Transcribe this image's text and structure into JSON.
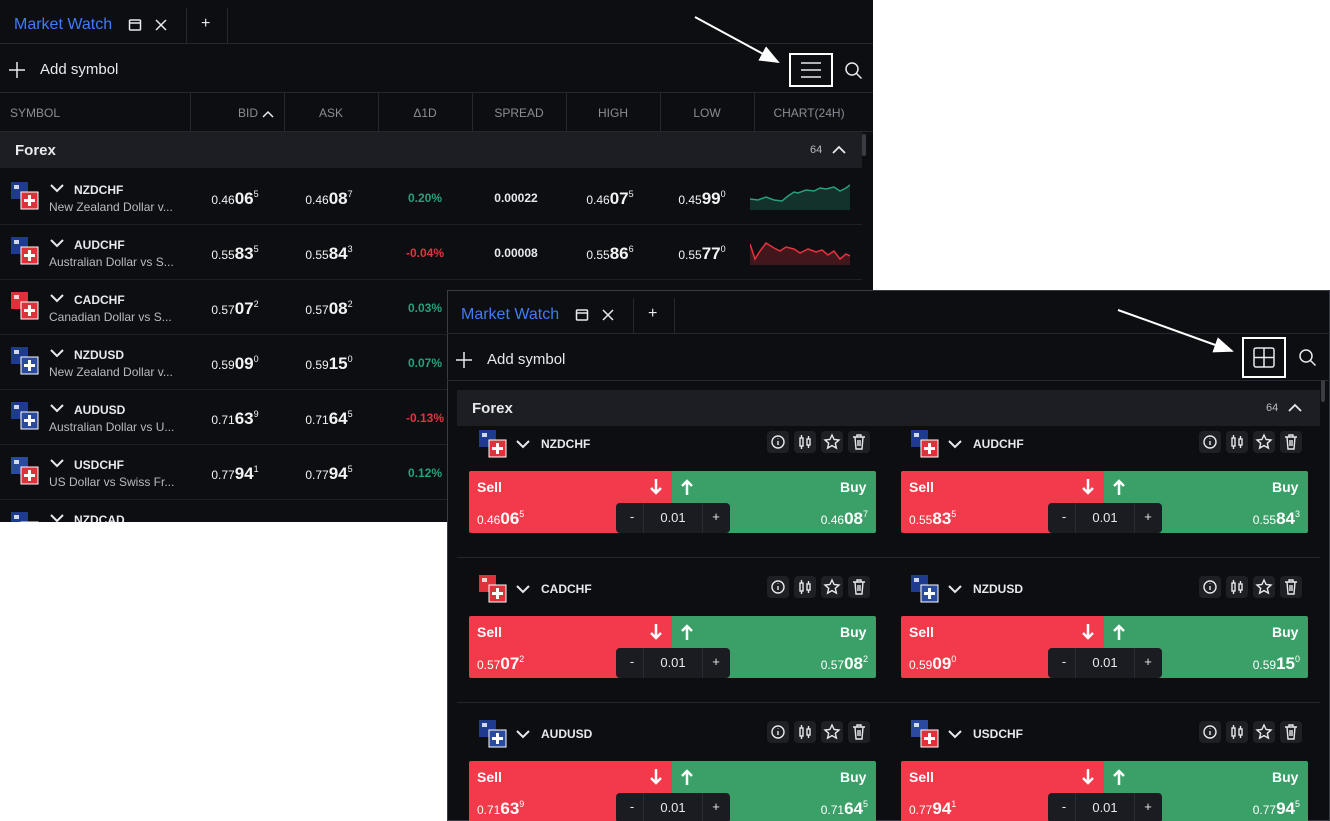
{
  "panels": [
    {
      "tab": "Market Watch",
      "new_tab": "+",
      "add_symbol": "Add symbol",
      "columns": [
        "SYMBOL",
        "BID",
        "ASK",
        "Δ1D",
        "SPREAD",
        "HIGH",
        "LOW",
        "CHART(24H)"
      ],
      "group": {
        "name": "Forex",
        "count": "64"
      },
      "rows": [
        {
          "symbol": "NZDCHF",
          "description": "New Zealand Dollar v...",
          "bid": [
            "0.46",
            "06",
            "5"
          ],
          "ask": [
            "0.46",
            "08",
            "7"
          ],
          "change": "0.20%",
          "spread": "0.00022",
          "high": [
            "0.46",
            "07",
            "5"
          ],
          "low": [
            "0.45",
            "99",
            "0"
          ]
        },
        {
          "symbol": "AUDCHF",
          "description": "Australian Dollar vs S...",
          "bid": [
            "0.55",
            "83",
            "5"
          ],
          "ask": [
            "0.55",
            "84",
            "3"
          ],
          "change": "-0.04%",
          "spread": "0.00008",
          "high": [
            "0.55",
            "86",
            "6"
          ],
          "low": [
            "0.55",
            "77",
            "0"
          ]
        },
        {
          "symbol": "CADCHF",
          "description": "Canadian Dollar vs S...",
          "bid": [
            "0.57",
            "07",
            "2"
          ],
          "ask": [
            "0.57",
            "08",
            "2"
          ],
          "change": "0.03%"
        },
        {
          "symbol": "NZDUSD",
          "description": "New Zealand Dollar v...",
          "bid": [
            "0.59",
            "09",
            "0"
          ],
          "ask": [
            "0.59",
            "15",
            "0"
          ],
          "change": "0.07%"
        },
        {
          "symbol": "AUDUSD",
          "description": "Australian Dollar vs U...",
          "bid": [
            "0.71",
            "63",
            "9"
          ],
          "ask": [
            "0.71",
            "64",
            "5"
          ],
          "change": "-0.13%"
        },
        {
          "symbol": "USDCHF",
          "description": "US Dollar vs Swiss Fr...",
          "bid": [
            "0.77",
            "94",
            "1"
          ],
          "ask": [
            "0.77",
            "94",
            "5"
          ],
          "change": "0.12%"
        },
        {
          "symbol": "NZDCAD"
        }
      ]
    },
    {
      "tab": "Market Watch",
      "new_tab": "+",
      "add_symbol": "Add symbol",
      "group": {
        "name": "Forex",
        "count": "64"
      },
      "sell_label": "Sell",
      "buy_label": "Buy",
      "minus": "-",
      "plus": "+",
      "cards": [
        {
          "symbol": "NZDCHF",
          "sell": [
            "0.46",
            "06",
            "5"
          ],
          "buy": [
            "0.46",
            "08",
            "7"
          ],
          "lot": "0.01"
        },
        {
          "symbol": "AUDCHF",
          "sell": [
            "0.55",
            "83",
            "5"
          ],
          "buy": [
            "0.55",
            "84",
            "3"
          ],
          "lot": "0.01"
        },
        {
          "symbol": "CADCHF",
          "sell": [
            "0.57",
            "07",
            "2"
          ],
          "buy": [
            "0.57",
            "08",
            "2"
          ],
          "lot": "0.01"
        },
        {
          "symbol": "NZDUSD",
          "sell": [
            "0.59",
            "09",
            "0"
          ],
          "buy": [
            "0.59",
            "15",
            "0"
          ],
          "lot": "0.01"
        },
        {
          "symbol": "AUDUSD",
          "sell": [
            "0.71",
            "63",
            "9"
          ],
          "buy": [
            "0.71",
            "64",
            "5"
          ],
          "lot": "0.01"
        },
        {
          "symbol": "USDCHF",
          "sell": [
            "0.77",
            "94",
            "1"
          ],
          "buy": [
            "0.77",
            "94",
            "5"
          ],
          "lot": "0.01"
        }
      ]
    }
  ]
}
